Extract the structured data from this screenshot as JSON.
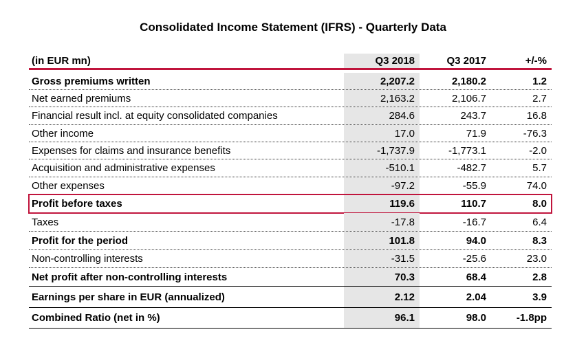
{
  "title": "Consolidated Income Statement (IFRS) - Quarterly Data",
  "header": {
    "label": "(in EUR mn)",
    "q3_2018": "Q3 2018",
    "q3_2017": "Q3 2017",
    "change": "+/-%"
  },
  "rows": [
    {
      "label": "Gross premiums written",
      "q3_2018": "2,207.2",
      "q3_2017": "2,180.2",
      "change": "1.2"
    },
    {
      "label": "Net earned premiums",
      "q3_2018": "2,163.2",
      "q3_2017": "2,106.7",
      "change": "2.7"
    },
    {
      "label": "Financial result incl. at equity consolidated companies",
      "q3_2018": "284.6",
      "q3_2017": "243.7",
      "change": "16.8"
    },
    {
      "label": "Other income",
      "q3_2018": "17.0",
      "q3_2017": "71.9",
      "change": "-76.3"
    },
    {
      "label": "Expenses for claims and insurance benefits",
      "q3_2018": "-1,737.9",
      "q3_2017": "-1,773.1",
      "change": "-2.0"
    },
    {
      "label": "Acquisition and administrative expenses",
      "q3_2018": "-510.1",
      "q3_2017": "-482.7",
      "change": "5.7"
    },
    {
      "label": "Other expenses",
      "q3_2018": "-97.2",
      "q3_2017": "-55.9",
      "change": "74.0"
    },
    {
      "label": "Profit before taxes",
      "q3_2018": "119.6",
      "q3_2017": "110.7",
      "change": "8.0"
    },
    {
      "label": "Taxes",
      "q3_2018": "-17.8",
      "q3_2017": "-16.7",
      "change": "6.4"
    },
    {
      "label": "Profit for the period",
      "q3_2018": "101.8",
      "q3_2017": "94.0",
      "change": "8.3"
    },
    {
      "label": "Non-controlling interests",
      "q3_2018": "-31.5",
      "q3_2017": "-25.6",
      "change": "23.0"
    },
    {
      "label": "Net profit after non-controlling interests",
      "q3_2018": "70.3",
      "q3_2017": "68.4",
      "change": "2.8"
    },
    {
      "label": "Earnings per share in EUR (annualized)",
      "q3_2018": "2.12",
      "q3_2017": "2.04",
      "change": "3.9"
    },
    {
      "label": "Combined Ratio (net in %)",
      "q3_2018": "96.1",
      "q3_2017": "98.0",
      "change": "-1.8pp"
    }
  ],
  "colors": {
    "accent": "#c0143c",
    "shaded_column": "#e6e6e6"
  }
}
